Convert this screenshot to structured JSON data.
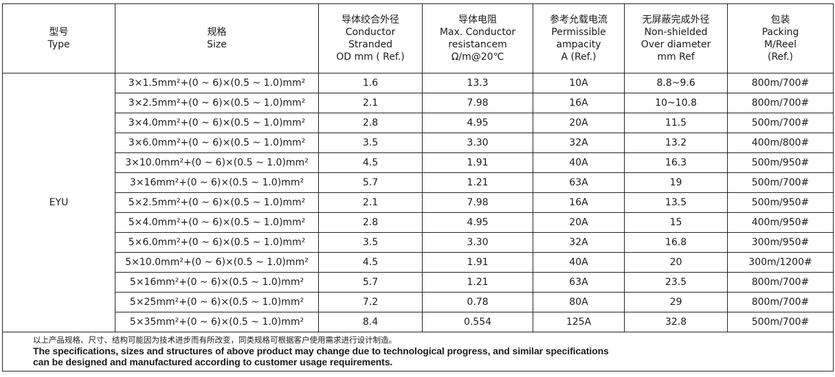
{
  "headers": [
    {
      "cn": "型号",
      "en": [
        "Type"
      ]
    },
    {
      "cn": "规格",
      "en": [
        "Size"
      ]
    },
    {
      "cn": "导体绞合外径",
      "en": [
        "Conductor",
        "Stranded",
        "OD mm ( Ref.)"
      ]
    },
    {
      "cn": "导体电阻",
      "en": [
        "Max. Conductor",
        "resistancem",
        "Ω/m@20℃"
      ]
    },
    {
      "cn": "参考允载电流",
      "en": [
        "Permissible",
        "ampacity",
        "A (Ref.)"
      ]
    },
    {
      "cn": "无屏蔽完成外径",
      "en": [
        "Non-shielded",
        "Over diameter",
        "mm Ref"
      ]
    },
    {
      "cn": "包装",
      "en": [
        "Packing",
        "M/Reel",
        "(Ref.)"
      ]
    }
  ],
  "type": "EYU",
  "rows": [
    [
      "3×1.5mm²+(0 ~ 6)×(0.5 ~ 1.0)mm²",
      "1.6",
      "13.3",
      "10A",
      "8.8~9.6",
      "800m/700#"
    ],
    [
      "3×2.5mm²+(0 ~ 6)×(0.5 ~ 1.0)mm²",
      "2.1",
      "7.98",
      "16A",
      "10~10.8",
      "800m/700#"
    ],
    [
      "3×4.0mm²+(0 ~ 6)×(0.5 ~ 1.0)mm²",
      "2.8",
      "4.95",
      "20A",
      "11.5",
      "500m/700#"
    ],
    [
      "3×6.0mm²+(0 ~ 6)×(0.5 ~ 1.0)mm²",
      "3.5",
      "3.30",
      "32A",
      "13.2",
      "400m/800#"
    ],
    [
      "3×10.0mm²+(0 ~ 6)×(0.5 ~ 1.0)mm²",
      "4.5",
      "1.91",
      "40A",
      "16.3",
      "500m/950#"
    ],
    [
      "3×16mm²+(0 ~ 6)×(0.5 ~ 1.0)mm²",
      "5.7",
      "1.21",
      "63A",
      "19",
      "500m/700#"
    ],
    [
      "5×2.5mm²+(0 ~ 6)×(0.5 ~ 1.0)mm²",
      "2.1",
      "7.98",
      "16A",
      "13.5",
      "500m/950#"
    ],
    [
      "5×4.0mm²+(0 ~ 6)×(0.5 ~ 1.0)mm²",
      "2.8",
      "4.95",
      "20A",
      "15",
      "400m/950#"
    ],
    [
      "5×6.0mm²+(0 ~ 6)×(0.5 ~ 1.0)mm²",
      "3.5",
      "3.30",
      "32A",
      "16.8",
      "300m/950#"
    ],
    [
      "5×10.0mm²+(0 ~ 6)×(0.5 ~ 1.0)mm²",
      "4.5",
      "1.91",
      "40A",
      "20",
      "300m/1200#"
    ],
    [
      "5×16mm²+(0 ~ 6)×(0.5 ~ 1.0)mm²",
      "5.7",
      "1.21",
      "63A",
      "23.5",
      "800m/700#"
    ],
    [
      "5×25mm²+(0 ~ 6)×(0.5 ~ 1.0)mm²",
      "7.2",
      "0.78",
      "80A",
      "29",
      "800m/700#"
    ],
    [
      "5×35mm²+(0 ~ 6)×(0.5 ~ 1.0)mm²",
      "8.4",
      "0.554",
      "125A",
      "32.8",
      "500m/700#"
    ]
  ],
  "note": {
    "cn": "以上产品规格、尺寸、结构可能因为技术进步而有所改变，同类规格可根据客户使用需求进行设计制造。",
    "en1": "The specifications, sizes and structures of above product may change due to technological progress, and similar specifications",
    "en2": "can be designed and manufactured according to customer usage requirements."
  }
}
